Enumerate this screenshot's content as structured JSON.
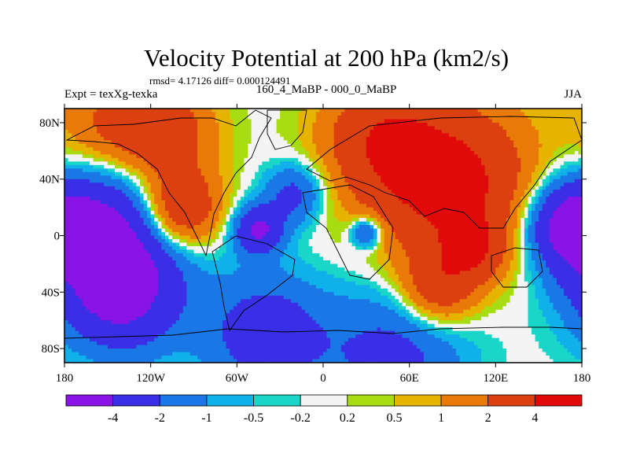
{
  "chart_data": {
    "type": "heatmap",
    "title": "Velocity Potential at 200 hPa (km2/s)",
    "stats": "rmsd= 4.17126 diff= 0.000124491",
    "experiment": "Expt = texXg-texka",
    "comparison": "160_4_MaBP - 000_0_MaBP",
    "season": "JJA",
    "units": "km2/s",
    "x_ticks": [
      "180",
      "120W",
      "60W",
      "0",
      "60E",
      "120E",
      "180"
    ],
    "x_values": [
      -180,
      -120,
      -60,
      0,
      60,
      120,
      180
    ],
    "y_ticks": [
      "80N",
      "40N",
      "0",
      "40S",
      "80S"
    ],
    "y_values": [
      80,
      40,
      0,
      -40,
      -80
    ],
    "xlim": [
      -180,
      180
    ],
    "ylim": [
      -90,
      90
    ],
    "colorbar_levels": [
      -4,
      -2,
      -1,
      -0.5,
      -0.2,
      0.2,
      0.5,
      1,
      2,
      4
    ],
    "colorbar_labels": [
      "-4",
      "-2",
      "-1",
      "-0.5",
      "-0.2",
      "0.2",
      "0.5",
      "1",
      "2",
      "4"
    ],
    "colorbar_colors": [
      "#8a13e6",
      "#3a2fe6",
      "#1a78e6",
      "#10b0ea",
      "#1ad6c8",
      "#f4f4f4",
      "#a8dc12",
      "#e6b400",
      "#ea7a08",
      "#dc4010",
      "#e00a0a"
    ],
    "field_centers": [
      {
        "lon": 90,
        "lat": 35,
        "value": 4.8,
        "spread": 40
      },
      {
        "lon": 40,
        "lat": 70,
        "value": 3.0,
        "spread": 30
      },
      {
        "lon": -100,
        "lat": 18,
        "value": 4.3,
        "spread": 20
      },
      {
        "lon": -110,
        "lat": 72,
        "value": 3.0,
        "spread": 25
      },
      {
        "lon": -150,
        "lat": 78,
        "value": 2.0,
        "spread": 25
      },
      {
        "lon": 80,
        "lat": -38,
        "value": 3.0,
        "spread": 18
      },
      {
        "lon": 105,
        "lat": -10,
        "value": 2.5,
        "spread": 15
      },
      {
        "lon": -150,
        "lat": -2,
        "value": -4.8,
        "spread": 35
      },
      {
        "lon": -140,
        "lat": -45,
        "value": -3.5,
        "spread": 28
      },
      {
        "lon": -45,
        "lat": 4,
        "value": -4.2,
        "spread": 12
      },
      {
        "lon": 170,
        "lat": 8,
        "value": -4.2,
        "spread": 20
      },
      {
        "lon": 30,
        "lat": 2,
        "value": -3.0,
        "spread": 8
      },
      {
        "lon": -40,
        "lat": -70,
        "value": -3.0,
        "spread": 30
      },
      {
        "lon": 50,
        "lat": -85,
        "value": -2.5,
        "spread": 35
      },
      {
        "lon": -20,
        "lat": 30,
        "value": -2.5,
        "spread": 15
      }
    ]
  }
}
